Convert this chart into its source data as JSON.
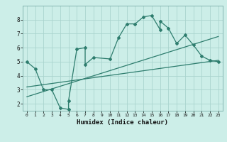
{
  "title": "",
  "xlabel": "Humidex (Indice chaleur)",
  "bg_color": "#cceee8",
  "grid_color": "#aad4ce",
  "line_color": "#2e7d6e",
  "xlim": [
    -0.5,
    23.5
  ],
  "ylim": [
    1.5,
    9.0
  ],
  "xticks": [
    0,
    1,
    2,
    3,
    4,
    5,
    6,
    7,
    8,
    9,
    10,
    11,
    12,
    13,
    14,
    15,
    16,
    17,
    18,
    19,
    20,
    21,
    22,
    23
  ],
  "yticks": [
    2,
    3,
    4,
    5,
    6,
    7,
    8
  ],
  "line1_x": [
    0,
    1,
    2,
    3,
    4,
    5,
    5,
    6,
    7,
    7,
    8,
    10,
    11,
    12,
    13,
    14,
    15,
    16,
    16,
    17,
    18,
    19,
    20,
    21,
    22,
    23
  ],
  "line1_y": [
    5.0,
    4.5,
    3.0,
    3.0,
    1.7,
    1.6,
    2.2,
    5.9,
    6.0,
    4.8,
    5.3,
    5.2,
    6.7,
    7.7,
    7.7,
    8.2,
    8.3,
    7.3,
    7.9,
    7.4,
    6.3,
    6.9,
    6.2,
    5.4,
    5.1,
    5.0
  ],
  "line2_x": [
    0,
    23
  ],
  "line2_y": [
    3.2,
    5.1
  ],
  "line3_x": [
    0,
    23
  ],
  "line3_y": [
    2.5,
    6.8
  ]
}
